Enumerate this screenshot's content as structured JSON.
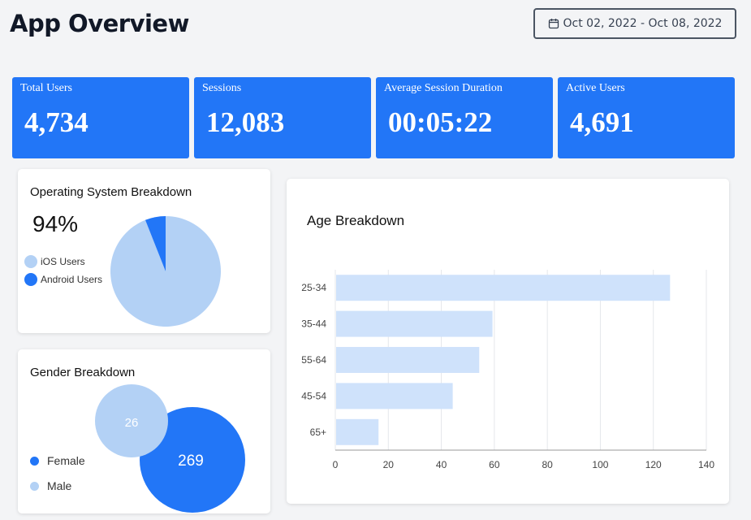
{
  "header": {
    "title": "App Overview",
    "date_range": "Oct 02, 2022 - Oct 08, 2022"
  },
  "stats": [
    {
      "label": "Total Users",
      "value": "4,734"
    },
    {
      "label": "Sessions",
      "value": "12,083"
    },
    {
      "label": "Average Session Duration",
      "value": "00:05:22"
    },
    {
      "label": "Active Users",
      "value": "4,691"
    }
  ],
  "os_panel": {
    "title": "Operating System Breakdown",
    "percent": "94%",
    "legend": [
      {
        "label": "iOS Users",
        "color": "#b3d1f5"
      },
      {
        "label": "Android Users",
        "color": "#2276f7"
      }
    ]
  },
  "gender_panel": {
    "title": "Gender Breakdown",
    "legend": [
      {
        "label": "Female",
        "color": "#2276f7"
      },
      {
        "label": "Male",
        "color": "#b3d1f5"
      }
    ]
  },
  "age_panel": {
    "title": "Age Breakdown"
  },
  "chart_data": [
    {
      "type": "pie",
      "title": "Operating System Breakdown",
      "labels": [
        "iOS Users",
        "Android Users"
      ],
      "values": [
        94,
        6
      ],
      "colors": [
        "#b3d1f5",
        "#2276f7"
      ]
    },
    {
      "type": "bubble",
      "title": "Gender Breakdown",
      "labels": [
        "Female",
        "Male"
      ],
      "values": [
        269,
        26
      ],
      "colors": [
        "#2276f7",
        "#b3d1f5"
      ]
    },
    {
      "type": "bar",
      "orientation": "horizontal",
      "title": "Age Breakdown",
      "categories": [
        "25-34",
        "35-44",
        "55-64",
        "45-54",
        "65+"
      ],
      "values": [
        126,
        59,
        54,
        44,
        16
      ],
      "xlim": [
        0,
        140
      ],
      "xticks": [
        0,
        20,
        40,
        60,
        80,
        100,
        120,
        140
      ],
      "grid": true,
      "color": "#cfe2fb"
    }
  ]
}
